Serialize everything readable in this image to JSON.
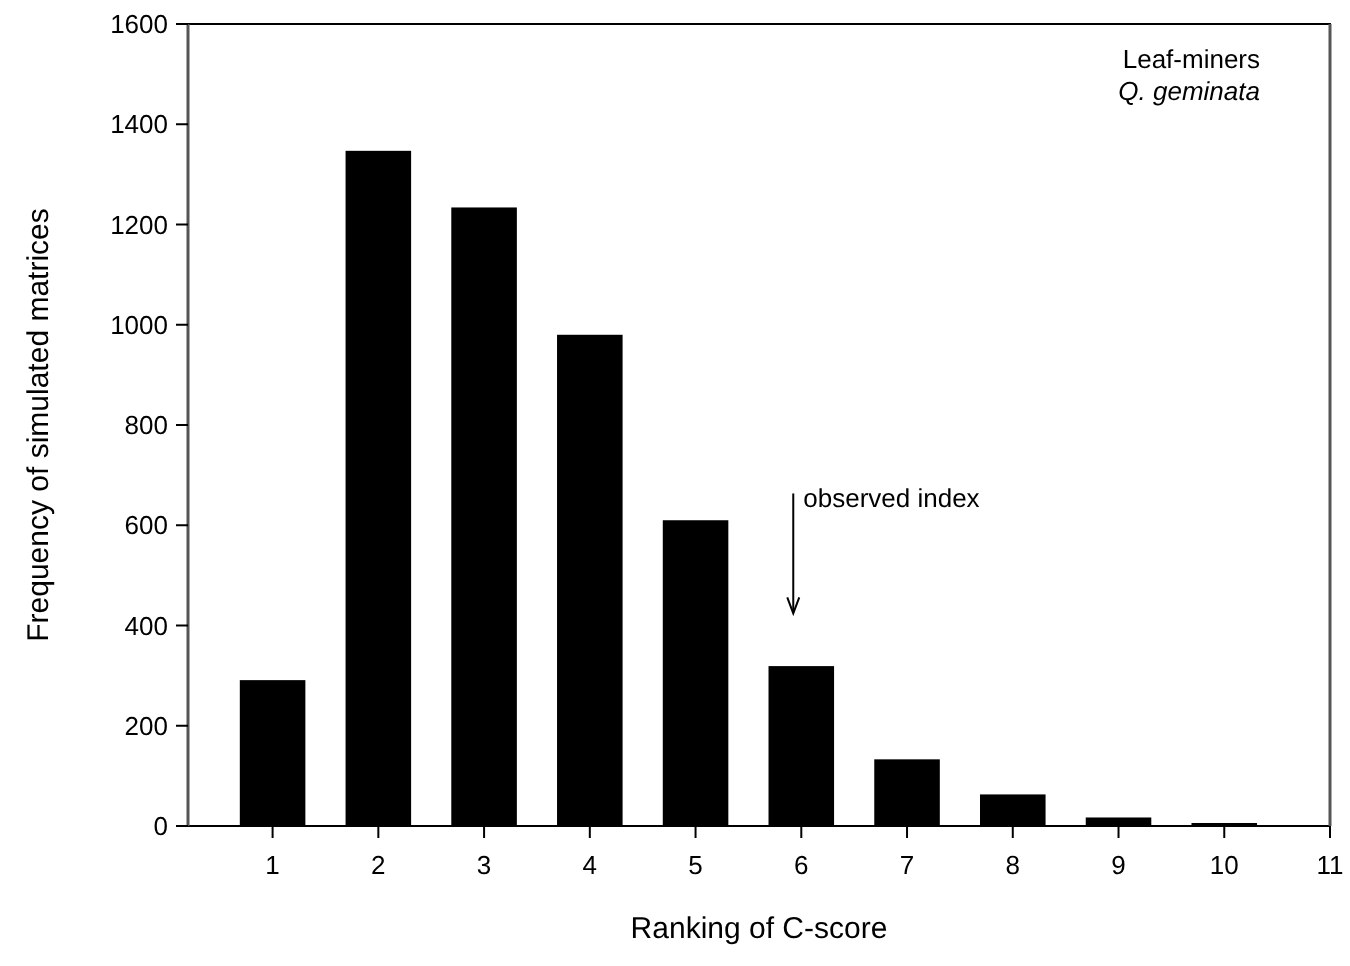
{
  "chart_data": {
    "type": "bar",
    "xlabel": "Ranking of C-score",
    "ylabel": "Frequency of simulated matrices",
    "x": [
      1,
      2,
      3,
      4,
      5,
      6,
      7,
      8,
      9,
      10
    ],
    "values": [
      291,
      1347,
      1234,
      980,
      610,
      319,
      133,
      63,
      17,
      6
    ],
    "color": "#000000",
    "xlim": [
      0.2,
      11
    ],
    "xticks": [
      1,
      2,
      3,
      4,
      5,
      6,
      7,
      8,
      9,
      10,
      11
    ],
    "ylim": [
      0,
      1600
    ],
    "yticks": [
      0,
      200,
      400,
      600,
      800,
      1000,
      1200,
      1400,
      1600
    ],
    "grid": false,
    "annotations": [
      "Leaf-miners",
      "Q. geminata",
      "observed index"
    ]
  }
}
